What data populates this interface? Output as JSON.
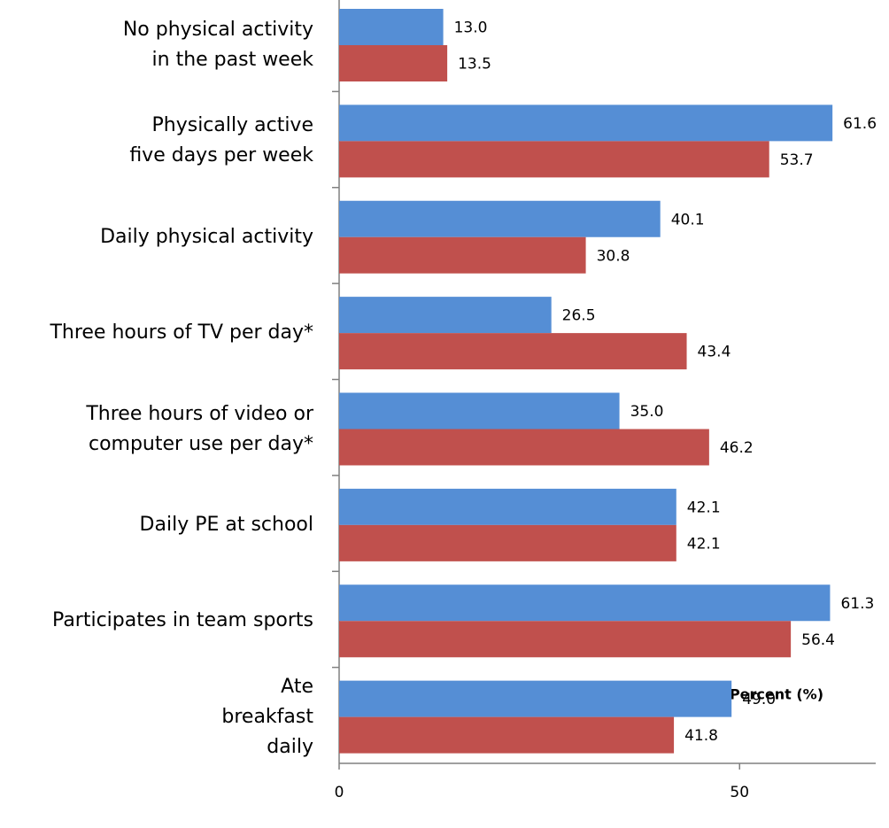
{
  "chart_data": {
    "type": "hbar",
    "categories": [
      "No physical activity\nin the past week",
      "Physically active\nfive days per week",
      "Daily physical activity",
      "Three hours of TV per day*",
      "Three hours of video or\ncomputer use per day*",
      "Daily PE at school",
      "Participates in team sports",
      "Ate\nbreakfast\ndaily"
    ],
    "series": [
      {
        "color": "#558ed5",
        "values": [
          13.0,
          61.6,
          40.1,
          26.5,
          35.0,
          42.1,
          61.3,
          49.0
        ],
        "value_labels": [
          "13.0",
          "61.6",
          "40.1",
          "26.5",
          "35.0",
          "42.1",
          "61.3",
          "49.0"
        ]
      },
      {
        "color": "#c0504d",
        "values": [
          13.5,
          53.7,
          30.8,
          43.4,
          46.2,
          42.1,
          56.4,
          41.8
        ],
        "value_labels": [
          "13.5",
          "53.7",
          "30.8",
          "43.4",
          "46.2",
          "42.1",
          "56.4",
          "41.8"
        ]
      }
    ],
    "xlim": [
      0,
      67
    ],
    "xticks": [
      0,
      50
    ],
    "xlabel": "Percent (%)"
  }
}
